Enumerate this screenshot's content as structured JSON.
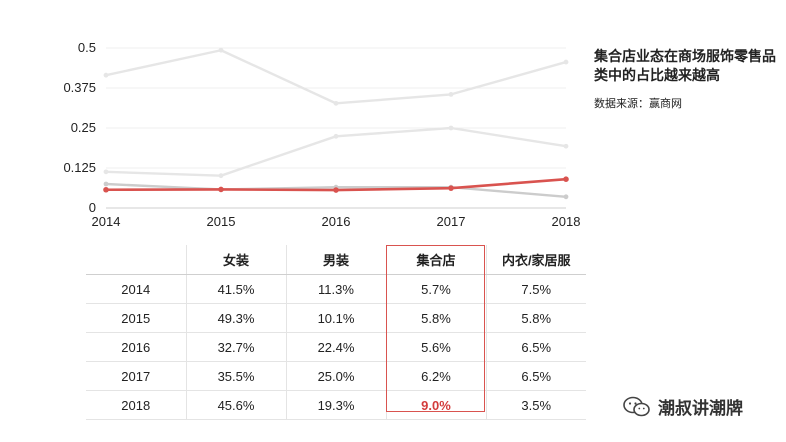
{
  "chart_data": {
    "type": "line",
    "x": [
      2014,
      2015,
      2016,
      2017,
      2018
    ],
    "ylim": [
      0,
      0.5
    ],
    "yticks": [
      "0",
      "0.125",
      "0.25",
      "0.375",
      "0.5"
    ],
    "xticks": [
      "2014",
      "2015",
      "2016",
      "2017",
      "2018"
    ],
    "grid": true,
    "series": [
      {
        "key": "women",
        "values": [
          0.415,
          0.493,
          0.327,
          0.355,
          0.456
        ],
        "color": "#e6e6e6"
      },
      {
        "key": "men",
        "values": [
          0.113,
          0.101,
          0.224,
          0.25,
          0.193
        ],
        "color": "#e6e6e6"
      },
      {
        "key": "underwear",
        "values": [
          0.075,
          0.058,
          0.065,
          0.065,
          0.035
        ],
        "color": "#cccccc"
      },
      {
        "key": "collection",
        "values": [
          0.057,
          0.058,
          0.056,
          0.062,
          0.09
        ],
        "color": "#d9534f"
      }
    ]
  },
  "side": {
    "title": "集合店业态在商场服饰零售品类中的占比越来越高",
    "source": "数据来源：赢商网"
  },
  "table": {
    "headers": [
      "",
      "女装",
      "男装",
      "集合店",
      "内衣/家居服"
    ],
    "rows": [
      [
        "2014",
        "41.5%",
        "11.3%",
        "5.7%",
        "7.5%"
      ],
      [
        "2015",
        "49.3%",
        "10.1%",
        "5.8%",
        "5.8%"
      ],
      [
        "2016",
        "32.7%",
        "22.4%",
        "5.6%",
        "6.5%"
      ],
      [
        "2017",
        "35.5%",
        "25.0%",
        "6.2%",
        "6.5%"
      ],
      [
        "2018",
        "45.6%",
        "19.3%",
        "9.0%",
        "3.5%"
      ]
    ]
  },
  "watermark": {
    "text": "潮叔讲潮牌",
    "icon": "wechat-icon"
  }
}
